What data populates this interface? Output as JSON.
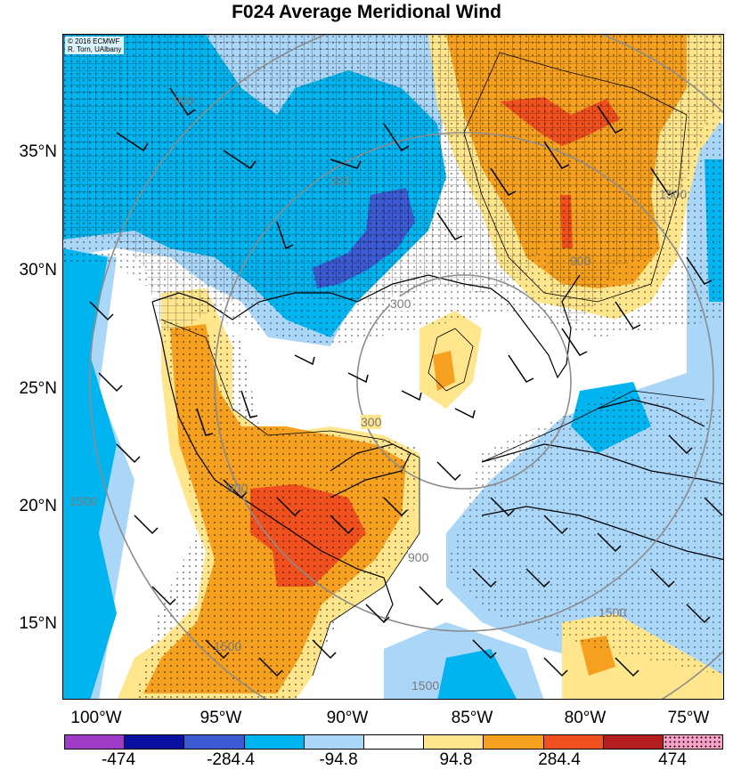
{
  "title": "F024 Average Meridional Wind",
  "credit": {
    "line1": "© 2016 ECMWF",
    "line2": "R. Torn, UAlbany"
  },
  "latitude_labels": [
    "35°N",
    "30°N",
    "25°N",
    "20°N",
    "15°N"
  ],
  "longitude_labels": [
    "100°W",
    "95°W",
    "90°W",
    "85°W",
    "80°W",
    "75°W"
  ],
  "contour_labels": [
    "300",
    "300",
    "300",
    "900",
    "900",
    "900",
    "900",
    "1500",
    "1500",
    "1500",
    "1500",
    "1500"
  ],
  "colorbar": {
    "tick_labels": [
      "-474",
      "-284.4",
      "-94.8",
      "94.8",
      "284.4",
      "474"
    ],
    "colors": [
      "#a03cc8",
      "#0a10a0",
      "#3c5ad2",
      "#00b4f0",
      "#aad6f8",
      "#ffffff",
      "#ffe68c",
      "#f5a01e",
      "#f0501e",
      "#b41e1e",
      "#f8a0c8"
    ]
  },
  "colors": {
    "land_blue": "#00b4f0",
    "light_blue": "#aad6f8",
    "dark_blue": "#3c5ad2",
    "yellow": "#ffe68c",
    "orange": "#f5a01e",
    "red": "#f0501e"
  }
}
